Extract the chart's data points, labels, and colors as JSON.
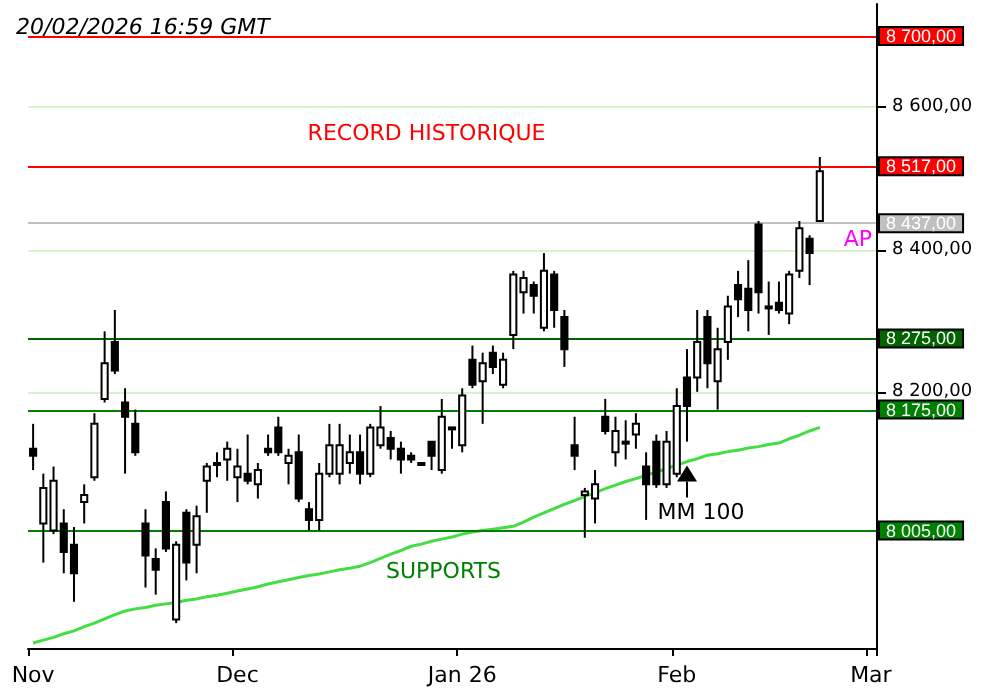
{
  "chart_data": {
    "type": "candlestick",
    "title": "20/02/2026 16:59 GMT",
    "categories": [
      "Nov",
      null,
      null,
      null,
      null,
      null,
      null,
      null,
      null,
      null,
      null,
      null,
      null,
      null,
      null,
      null,
      null,
      null,
      null,
      null,
      "Dec",
      null,
      null,
      null,
      null,
      null,
      null,
      null,
      null,
      null,
      null,
      null,
      null,
      null,
      null,
      null,
      null,
      null,
      null,
      null,
      null,
      null,
      "Jan 26",
      null,
      null,
      null,
      null,
      null,
      null,
      null,
      null,
      null,
      null,
      null,
      null,
      null,
      null,
      null,
      null,
      null,
      null,
      null,
      null,
      "Feb",
      null,
      null,
      null,
      null,
      null,
      null,
      null,
      null,
      null,
      null,
      null,
      null,
      null,
      null,
      null,
      null,
      null,
      null,
      "Mar"
    ],
    "ohlc": [
      [
        8120,
        8155,
        8090,
        8110
      ],
      [
        8015,
        8085,
        7960,
        8065
      ],
      [
        8005,
        8095,
        8000,
        8075
      ],
      [
        8015,
        8035,
        7945,
        7975
      ],
      [
        7985,
        8010,
        7905,
        7945
      ],
      [
        8045,
        8070,
        8015,
        8055
      ],
      [
        8080,
        8170,
        8075,
        8155
      ],
      [
        8190,
        8285,
        8185,
        8240
      ],
      [
        8270,
        8315,
        8225,
        8230
      ],
      [
        8185,
        8205,
        8085,
        8165
      ],
      [
        8155,
        8175,
        8110,
        8115
      ],
      [
        8015,
        8035,
        7925,
        7970
      ],
      [
        7965,
        7980,
        7915,
        7950
      ],
      [
        8045,
        8060,
        7975,
        7980
      ],
      [
        7880,
        7990,
        7875,
        7985
      ],
      [
        8030,
        8035,
        7935,
        7960
      ],
      [
        7985,
        8040,
        7945,
        8025
      ],
      [
        8075,
        8100,
        8030,
        8095
      ],
      [
        8100,
        8115,
        8080,
        8100
      ],
      [
        8105,
        8130,
        8075,
        8120
      ],
      [
        8080,
        8120,
        8045,
        8095
      ],
      [
        8085,
        8140,
        8070,
        8075
      ],
      [
        8070,
        8100,
        8050,
        8090
      ],
      [
        8120,
        8140,
        8110,
        8115
      ],
      [
        8150,
        8165,
        8110,
        8115
      ],
      [
        8100,
        8120,
        8070,
        8110
      ],
      [
        8115,
        8140,
        8045,
        8050
      ],
      [
        8035,
        8045,
        8005,
        8020
      ],
      [
        8020,
        8100,
        8005,
        8085
      ],
      [
        8085,
        8155,
        8080,
        8125
      ],
      [
        8085,
        8155,
        8070,
        8125
      ],
      [
        8100,
        8140,
        8085,
        8115
      ],
      [
        8115,
        8140,
        8070,
        8085
      ],
      [
        8085,
        8155,
        8080,
        8150
      ],
      [
        8125,
        8180,
        8120,
        8150
      ],
      [
        8135,
        8145,
        8105,
        8120
      ],
      [
        8120,
        8130,
        8085,
        8105
      ],
      [
        8110,
        8115,
        8100,
        8105
      ],
      [
        8100,
        8100,
        8100,
        8100
      ],
      [
        8130,
        8130,
        8090,
        8110
      ],
      [
        8090,
        8190,
        8085,
        8165
      ],
      [
        8150,
        8150,
        8120,
        8150
      ],
      [
        8125,
        8205,
        8115,
        8195
      ],
      [
        8245,
        8265,
        8205,
        8210
      ],
      [
        8215,
        8255,
        8155,
        8240
      ],
      [
        8255,
        8265,
        8225,
        8235
      ],
      [
        8210,
        8255,
        8205,
        8245
      ],
      [
        8280,
        8370,
        8260,
        8365
      ],
      [
        8340,
        8370,
        8310,
        8360
      ],
      [
        8350,
        8355,
        8310,
        8335
      ],
      [
        8290,
        8395,
        8285,
        8370
      ],
      [
        8365,
        8370,
        8290,
        8315
      ],
      [
        8305,
        8315,
        8235,
        8260
      ],
      [
        8125,
        8165,
        8090,
        8110
      ],
      [
        8055,
        8065,
        7995,
        8060
      ],
      [
        8050,
        8090,
        8015,
        8070
      ],
      [
        8165,
        8190,
        8140,
        8145
      ],
      [
        8115,
        8165,
        8095,
        8145
      ],
      [
        8130,
        8160,
        8105,
        8130
      ],
      [
        8140,
        8170,
        8120,
        8155
      ],
      [
        8095,
        8115,
        8020,
        8070
      ],
      [
        8130,
        8140,
        8065,
        8070
      ],
      [
        8070,
        8145,
        8065,
        8130
      ],
      [
        8085,
        8205,
        8080,
        8180
      ],
      [
        8220,
        8260,
        8130,
        8180
      ],
      [
        8220,
        8315,
        8200,
        8270
      ],
      [
        8305,
        8315,
        8205,
        8240
      ],
      [
        8215,
        8290,
        8175,
        8260
      ],
      [
        8270,
        8335,
        8245,
        8320
      ],
      [
        8350,
        8370,
        8305,
        8330
      ],
      [
        8345,
        8385,
        8285,
        8315
      ],
      [
        8435,
        8440,
        8310,
        8340
      ],
      [
        8320,
        8355,
        8280,
        8320
      ],
      [
        8325,
        8355,
        8310,
        8315
      ],
      [
        8310,
        8370,
        8295,
        8365
      ],
      [
        8370,
        8440,
        8360,
        8430
      ],
      [
        8415,
        8420,
        8350,
        8395
      ],
      [
        8440,
        8530,
        8440,
        8510
      ],
      null,
      null,
      null,
      null,
      null
    ],
    "series": [
      {
        "type": "line",
        "color": "#44dd44",
        "values": [
          7847,
          7851,
          7855,
          7860,
          7864,
          7870,
          7875,
          7881,
          7887,
          7892,
          7895,
          7897,
          7900,
          7902,
          7904,
          7907,
          7909,
          7912,
          7914,
          7917,
          7920,
          7923,
          7926,
          7930,
          7933,
          7936,
          7939,
          7942,
          7944,
          7947,
          7950,
          7952,
          7955,
          7960,
          7966,
          7972,
          7977,
          7983,
          7986,
          7990,
          7993,
          7996,
          8000,
          8003,
          8005,
          8007,
          8009,
          8011,
          8017,
          8024,
          8030,
          8036,
          8042,
          8047,
          8053,
          8058,
          8064,
          8069,
          8074,
          8078,
          8083,
          8087,
          8092,
          8097,
          8102,
          8106,
          8111,
          8113,
          8116,
          8118,
          8121,
          8123,
          8126,
          8128,
          8134,
          8139,
          8145,
          8150,
          null,
          null,
          null,
          null,
          null
        ]
      }
    ],
    "marker": "none",
    "grid": "y",
    "ylim": [
      7840,
      8745
    ],
    "yticks": [
      {
        "value": 8200,
        "label": "8 200,00"
      },
      {
        "value": 8400,
        "label": "8 400,00"
      },
      {
        "value": 8600,
        "label": "8 600,00"
      }
    ],
    "ref_lines": [
      {
        "axis": "y",
        "value": 8700,
        "label": "8 700,00",
        "color": "#ff0000"
      },
      {
        "axis": "y",
        "value": 8517,
        "label": "8 517,00",
        "color": "#ff0000"
      },
      {
        "axis": "y",
        "value": 8437,
        "label": "8 437,00",
        "color": "#c0c0c0"
      },
      {
        "axis": "y",
        "value": 8275,
        "label": "8 275,00",
        "color": "#006400"
      },
      {
        "axis": "y",
        "value": 8175,
        "label": "8 175,00",
        "color": "#008000"
      },
      {
        "axis": "y",
        "value": 8005,
        "label": "8 005,00",
        "color": "#008000"
      }
    ],
    "annotations": [
      "RECORD HISTORIQUE",
      "SUPPORTS",
      {
        "text": "MM 100",
        "y": 8102
      },
      "AP"
    ]
  }
}
